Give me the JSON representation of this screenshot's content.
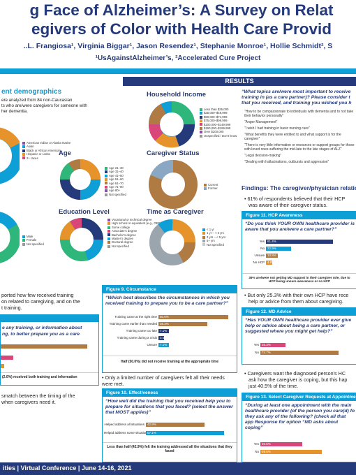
{
  "header": {
    "title_line1": "g Face of Alzheimer’s: A Survey on Relat",
    "title_line2": "egivers of Color with Health Care Provid",
    "authors": "..L. Frangiosa¹, Virginia Biggar¹, Jason Resendez¹, Stephanie Monroe¹, Hollie Schmidt², S",
    "affiliations": "¹UsAgainstAlzheimer’s, ²Accelerated Cure Project"
  },
  "left": {
    "demo_title": "ent demographics",
    "demo_text1": "ere analyzed from 84 non-Caucasian",
    "demo_text2": "ts who are/were caregivers for someone with",
    "demo_text3": "her dementia.",
    "race_legend": [
      "American Indian or Alaska Native",
      "Asian",
      "Black or African American",
      "Hispanic or Latinx",
      "2+ races"
    ],
    "gender_legend": [
      "Male",
      "Female",
      "Not specified"
    ],
    "training_text1": "ported how few received training",
    "training_text2": "on related to caregiving, and on the",
    "training_text3": "t training.",
    "training_q1": "e any training, or information about",
    "training_q2": "ng, to better prepare you as a care",
    "training_note": "(2.0%) received both training and information",
    "mismatch1": "smatch between the timing of the",
    "mismatch2": "when caregivers need it."
  },
  "mid": {
    "age_title": "Age",
    "age_legend": [
      "Age 21–30",
      "Age 31–40",
      "Age 41–50",
      "Age 51–60",
      "Age 61–70",
      "Age 71–80",
      "Age 80+",
      "Not specified"
    ],
    "edu_title": "Education Level",
    "edu_legend": [
      "Vocational or technical degree",
      "High school or equivalent (e.g., GED)",
      "Some college",
      "Associate’s degree",
      "Bachelor’s degree",
      "Master’s degree",
      "Doctoral degree",
      "Not specified"
    ],
    "income_title": "Household Income",
    "income_legend": [
      "Less than $25,000",
      "$25,000–$49,999",
      "$50,000–$74,999",
      "$75,000–$99,999",
      "$100,000–$149,999",
      "$150,000–$199,999",
      "Over $200,000",
      "Unspecified / Don’t know"
    ],
    "status_title": "Caregiver Status",
    "status_legend": [
      "Current",
      "Former"
    ],
    "time_title": "Time as Caregiver",
    "time_legend": [
      "< 1 yr",
      "1 yr – < 3 yrs",
      "3 yrs – < 5 yrs",
      "5+ yrs",
      "Not specified"
    ],
    "fig9_head": "Figure 9. Circumstance",
    "fig9_q": "“Which best describes the circumstances in which you received training to prepare you to be a care partner?”",
    "fig9_bars": [
      {
        "label": "Training came at the right time",
        "value": "50.0%"
      },
      {
        "label": "Training came earlier than needed",
        "value": "35.3%"
      },
      {
        "label": "Training came too late",
        "value": "7.1%"
      },
      {
        "label": "Training came during a crisis",
        "value": "3.5%"
      },
      {
        "label": "Unsure",
        "value": "7.1%"
      }
    ],
    "fig9_note": "Half (50.0%) did not receive training at the appropriate time",
    "bullet_mid": "Only a limited number of caregivers felt all their needs were met.",
    "fig10_head": "Figure 10. Effectiveness",
    "fig10_q": "“How well did the training that you received help you to prepare for situations that you faced? (select the answer that MOST applies)”",
    "fig10_bars": [
      {
        "label": "Helped address all situations",
        "value": "42.9%"
      },
      {
        "label": "Helped address some situations",
        "value": "57.1%"
      }
    ],
    "fig10_note": "Less than half (42.9%) felt the training addressed all the situations that they faced"
  },
  "right": {
    "q_title1": "“What topics are/were most important to receive",
    "q_title2": "training in (as a care partner)? Please consider t",
    "q_title3": "that you received, and training you wished you h",
    "quotes": [
      "“How to be compassionate to individuals with dementia and to not take their behavior personally”",
      "“Anger Management”",
      "“I wish I had training in basic nursing care”",
      "“What benefits they were entitled to and what support is for the caregiver”",
      "“There is very little information or resources or support groups for those with loved ones suffering the mid-late to the late stages of ALZ”",
      "“Legal decision-making”",
      "“Dealing with hallucinations, outbursts and aggression”"
    ],
    "findings_title": "Findings: The caregiver/physician relation",
    "bullet1a": "61% of respondents believed that their HCP",
    "bullet1b": "was aware of their caregiver status.",
    "fig11_head": "Figure 11. HCP Awareness",
    "fig11_q": "“Do you think YOUR OWN healthcare provider is aware that you are/were a care partner?”",
    "fig11_bars": [
      {
        "label": "Yes",
        "value": "61.4%"
      },
      {
        "label": "No",
        "value": "22.9%"
      },
      {
        "label": "Unsure",
        "value": "10.8%"
      },
      {
        "label": "No HCP",
        "value": "4.8%"
      }
    ],
    "fig11_note": "39% are/were not getting MD support in their caregiver role, due to HCP being unsure awareness or no HCP",
    "bullet2a": "But only 25.3% with their own HCP have rece",
    "bullet2b": "help or advice from them about caregiving.",
    "fig12_head": "Figure 12. MD Advice",
    "fig12_q": "“Has YOUR OWN healthcare provider ever give help or advice about being a care partner, or suggested where you might get help?”",
    "fig12_bars": [
      {
        "label": "Yes",
        "value": "25.3%"
      },
      {
        "label": "No",
        "value": "74.7%"
      }
    ],
    "bullet3a": "Caregivers want the diagnosed person’s HC",
    "bullet3b": "ask how the caregiver is coping, but this hap",
    "bullet3c": "just 40.5% of the time.",
    "fig13_head": "Figure 13. Select Caregiver Requests at Appointments",
    "fig13_q": "“During at least one appointment with the main healthcare provider (of the person you care(d) fo they ask any of the following? (check all that app Response for option “MD asks about coping”",
    "fig13_bars": [
      {
        "label": "Yes",
        "value": "40.5%"
      },
      {
        "label": "No",
        "value": "59.5%"
      }
    ]
  },
  "results_label": "RESULTS",
  "footer": "ities | Virtual Conference | June 14-16, 2021",
  "colors": {
    "navy": "#243a7a",
    "cyan": "#0d9fd6",
    "brown": "#b07a43",
    "pink": "#d9477a",
    "orange": "#e7932b"
  }
}
